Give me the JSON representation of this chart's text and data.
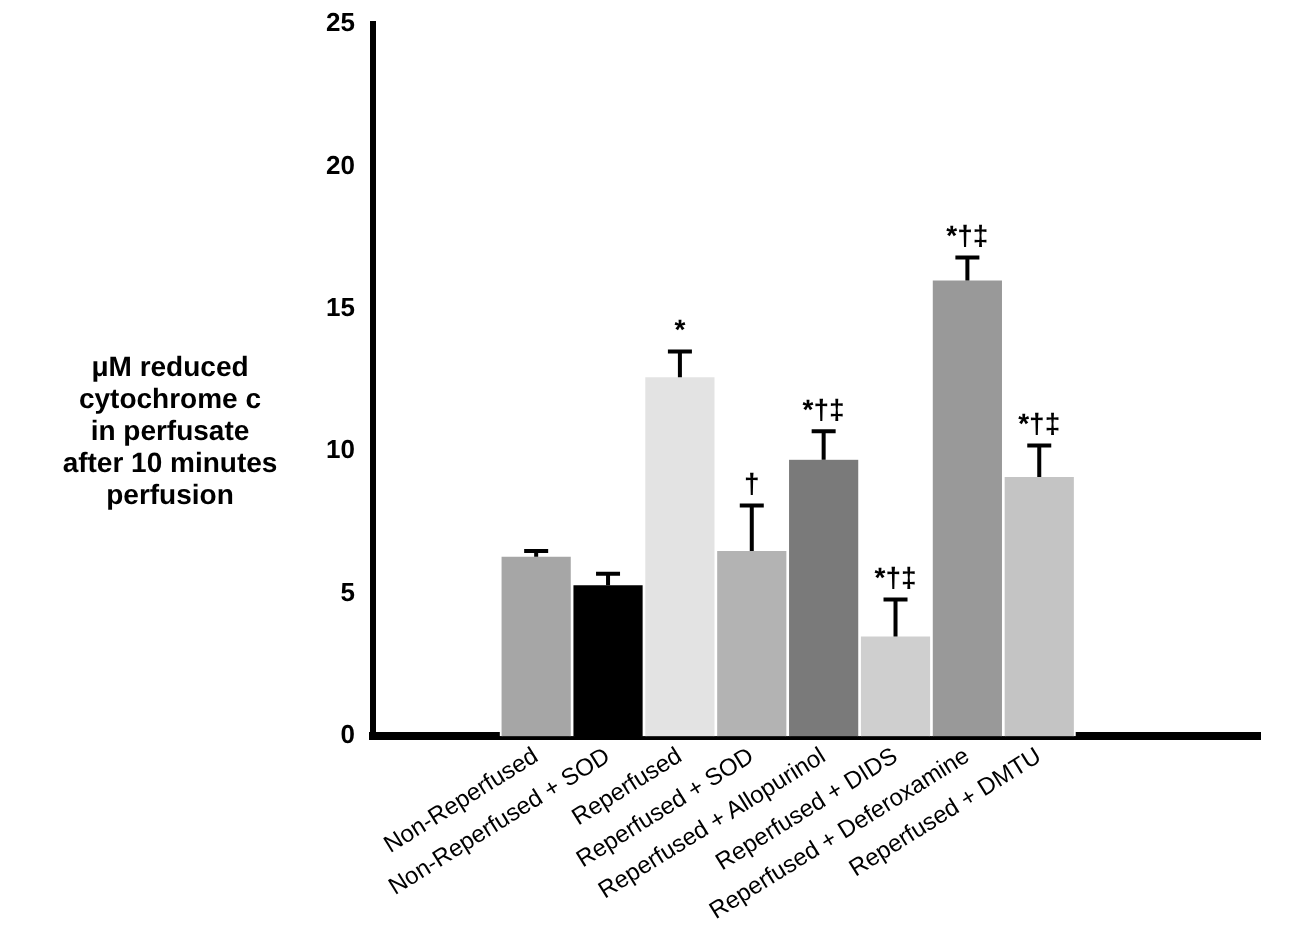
{
  "chart_data": {
    "type": "bar",
    "ylabel": "μM reduced\ncytochrome c\nin perfusate\nafter 10 minutes\nperfusion",
    "categories": [
      "Non-Reperfused",
      "Non-Reperfused + SOD",
      "Reperfused",
      "Reperfused + SOD",
      "Reperfused + Allopurinol",
      "Reperfused + DIDS",
      "Reperfused + Deferoxamine",
      "Reperfused + DMTU"
    ],
    "values": [
      6.3,
      5.3,
      12.6,
      6.5,
      9.7,
      3.5,
      16.0,
      9.1
    ],
    "colors": [
      "#a6a6a6",
      "#000000",
      "#e3e3e3",
      "#b3b3b3",
      "#7a7a7a",
      "#cfcfcf",
      "#999999",
      "#c4c4c4"
    ],
    "errors": [
      [
        6.3,
        6.5
      ],
      [
        5.3,
        5.7
      ],
      [
        12.6,
        13.5
      ],
      [
        6.5,
        8.1
      ],
      [
        9.7,
        10.7
      ],
      [
        3.5,
        4.8
      ],
      [
        16.0,
        16.8
      ],
      [
        9.1,
        10.2
      ]
    ],
    "ylim": [
      0,
      25
    ],
    "yticks": [
      0,
      5,
      10,
      15,
      20,
      25
    ],
    "grid": false,
    "legend": false,
    "annotations": [
      {
        "text": "*",
        "x": "Reperfused",
        "y": 13.5
      },
      {
        "text": "†",
        "x": "Reperfused + SOD",
        "y": 8.1
      },
      {
        "text": "*†‡",
        "x": "Reperfused + Allopurinol",
        "y": 10.7
      },
      {
        "text": "*†‡",
        "x": "Reperfused + DIDS",
        "y": 4.8
      },
      {
        "text": "*†‡",
        "x": "Reperfused + Deferoxamine",
        "y": 16.8
      },
      {
        "text": "*†‡",
        "x": "Reperfused + DMTU",
        "y": 10.2
      }
    ]
  }
}
